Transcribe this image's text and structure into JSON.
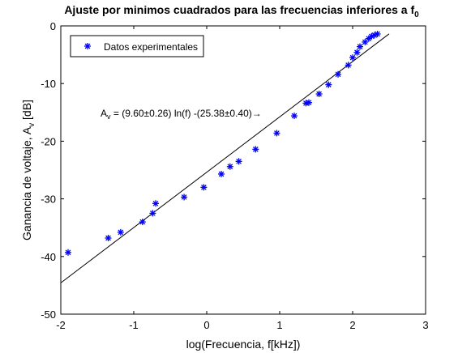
{
  "chart_data": {
    "type": "scatter",
    "title_main": "Ajuste por minimos cuadrados para las frecuencias inferiores a f",
    "title_sub": "0",
    "xlabel": "log(Frecuencia, f[kHz])",
    "ylabel_main": "Ganancia de voltaje, A",
    "ylabel_sub": "v",
    "ylabel_unit": " [dB]",
    "xlim": [
      -2,
      3
    ],
    "ylim": [
      -50,
      0
    ],
    "xticks": [
      -2,
      -1,
      0,
      1,
      2,
      3
    ],
    "yticks": [
      0,
      -10,
      -20,
      -30,
      -40,
      -50
    ],
    "grid": false,
    "legend_position": "top-left",
    "marker_color": "#0000ff",
    "line_color": "#000000",
    "series": [
      {
        "name": "Datos experimentales",
        "marker": "*",
        "points": [
          {
            "x": -1.9,
            "y": -39.3
          },
          {
            "x": -1.35,
            "y": -36.8
          },
          {
            "x": -1.18,
            "y": -35.8
          },
          {
            "x": -0.88,
            "y": -34.0
          },
          {
            "x": -0.74,
            "y": -32.5
          },
          {
            "x": -0.7,
            "y": -30.8
          },
          {
            "x": -0.31,
            "y": -29.7
          },
          {
            "x": -0.04,
            "y": -28.0
          },
          {
            "x": 0.2,
            "y": -25.7
          },
          {
            "x": 0.32,
            "y": -24.4
          },
          {
            "x": 0.44,
            "y": -23.5
          },
          {
            "x": 0.67,
            "y": -21.4
          },
          {
            "x": 0.96,
            "y": -18.6
          },
          {
            "x": 1.2,
            "y": -15.6
          },
          {
            "x": 1.36,
            "y": -13.4
          },
          {
            "x": 1.4,
            "y": -13.3
          },
          {
            "x": 1.54,
            "y": -11.8
          },
          {
            "x": 1.67,
            "y": -10.2
          },
          {
            "x": 1.8,
            "y": -8.4
          },
          {
            "x": 1.94,
            "y": -6.8
          },
          {
            "x": 2.0,
            "y": -5.5
          },
          {
            "x": 2.06,
            "y": -4.6
          },
          {
            "x": 2.1,
            "y": -3.6
          },
          {
            "x": 2.17,
            "y": -2.8
          },
          {
            "x": 2.22,
            "y": -2.2
          },
          {
            "x": 2.26,
            "y": -1.8
          },
          {
            "x": 2.3,
            "y": -1.6
          },
          {
            "x": 2.34,
            "y": -1.4
          }
        ]
      },
      {
        "type": "line",
        "fit": {
          "slope": 9.6,
          "intercept": -25.38
        },
        "x_range": [
          -2,
          2.5
        ]
      }
    ],
    "annotation": {
      "prefix": "A",
      "prefix_sub": "v",
      "text": " = (9.60±0.26) ln(f) -(25.38±0.40)→"
    }
  }
}
